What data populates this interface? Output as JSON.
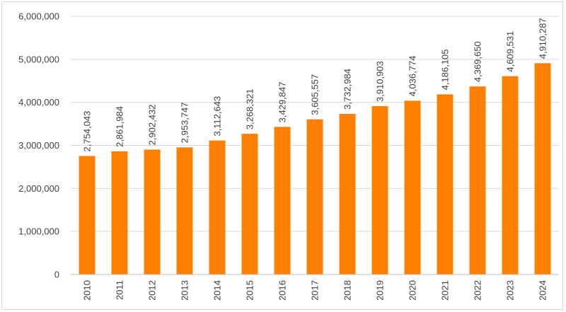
{
  "chart_data": {
    "type": "bar",
    "title": "",
    "xlabel": "",
    "ylabel": "",
    "categories": [
      "2010",
      "2011",
      "2012",
      "2013",
      "2014",
      "2015",
      "2016",
      "2017",
      "2018",
      "2019",
      "2020",
      "2021",
      "2022",
      "2023",
      "2024"
    ],
    "values": [
      2754043,
      2861984,
      2902432,
      2953747,
      3112643,
      3268321,
      3429847,
      3605557,
      3732984,
      3910903,
      4036774,
      4186105,
      4369650,
      4609531,
      4910287
    ],
    "data_labels": [
      "2,754,043",
      "2,861,984",
      "2,902,432",
      "2,953,747",
      "3,112,643",
      "3,268,321",
      "3,429,847",
      "3,605,557",
      "3,732,984",
      "3,910,903",
      "4,036,774",
      "4,186,105",
      "4,369,650",
      "4,609,531",
      "4,910,287"
    ],
    "ylim": [
      0,
      6000000
    ],
    "y_ticks": [
      0,
      1000000,
      2000000,
      3000000,
      4000000,
      5000000,
      6000000
    ],
    "y_tick_labels": [
      "0",
      "1,000,000",
      "2,000,000",
      "3,000,000",
      "4,000,000",
      "5,000,000",
      "6,000,000"
    ],
    "grid": true,
    "legend": "none",
    "colors": {
      "bar": "#ff8000",
      "grid": "#d9d9d9",
      "axis": "#bfbfbf",
      "text": "#404040"
    }
  }
}
